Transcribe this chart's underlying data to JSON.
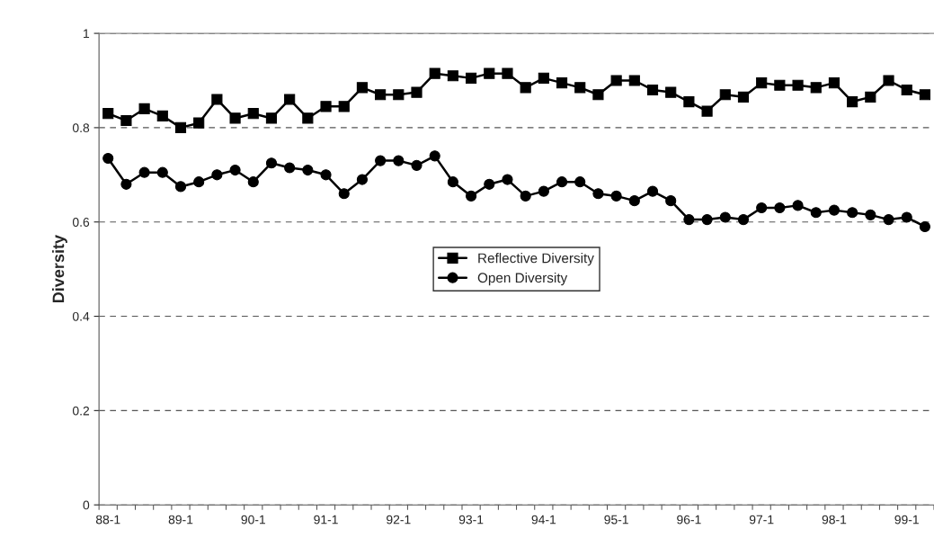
{
  "chart_data": {
    "type": "line",
    "ylabel": "Diversity",
    "categories": [
      "88-1",
      null,
      null,
      null,
      "89-1",
      null,
      null,
      null,
      "90-1",
      null,
      null,
      null,
      "91-1",
      null,
      null,
      null,
      "92-1",
      null,
      null,
      null,
      "93-1",
      null,
      null,
      null,
      "94-1",
      null,
      null,
      null,
      "95-1",
      null,
      null,
      null,
      "96-1",
      null,
      null,
      null,
      "97-1",
      null,
      null,
      null,
      "98-1",
      null,
      null,
      null,
      "99-1",
      null
    ],
    "series": [
      {
        "name": "Reflective Diversity",
        "color": "#000000",
        "marker": "square",
        "values": [
          0.83,
          0.815,
          0.84,
          0.825,
          0.8,
          0.81,
          0.86,
          0.82,
          0.83,
          0.82,
          0.86,
          0.82,
          0.845,
          0.845,
          0.885,
          0.87,
          0.87,
          0.875,
          0.915,
          0.91,
          0.905,
          0.915,
          0.915,
          0.885,
          0.905,
          0.895,
          0.885,
          0.87,
          0.9,
          0.9,
          0.88,
          0.875,
          0.855,
          0.835,
          0.87,
          0.865,
          0.895,
          0.89,
          0.89,
          0.885,
          0.895,
          0.855,
          0.865,
          0.9,
          0.88,
          0.87
        ]
      },
      {
        "name": "Open Diversity",
        "color": "#000000",
        "marker": "circle",
        "values": [
          0.735,
          0.68,
          0.705,
          0.705,
          0.675,
          0.685,
          0.7,
          0.71,
          0.685,
          0.725,
          0.715,
          0.71,
          0.7,
          0.66,
          0.69,
          0.73,
          0.73,
          0.72,
          0.74,
          0.685,
          0.655,
          0.68,
          0.69,
          0.655,
          0.665,
          0.685,
          0.685,
          0.66,
          0.655,
          0.645,
          0.665,
          0.645,
          0.605,
          0.605,
          0.61,
          0.605,
          0.63,
          0.63,
          0.635,
          0.62,
          0.625,
          0.62,
          0.615,
          0.605,
          0.61,
          0.59
        ]
      }
    ],
    "ylim": [
      0,
      1
    ],
    "yticks": [
      0,
      0.2,
      0.4,
      0.6,
      0.8,
      1
    ],
    "grid": "y",
    "legend": "center",
    "line_style": "solid"
  }
}
